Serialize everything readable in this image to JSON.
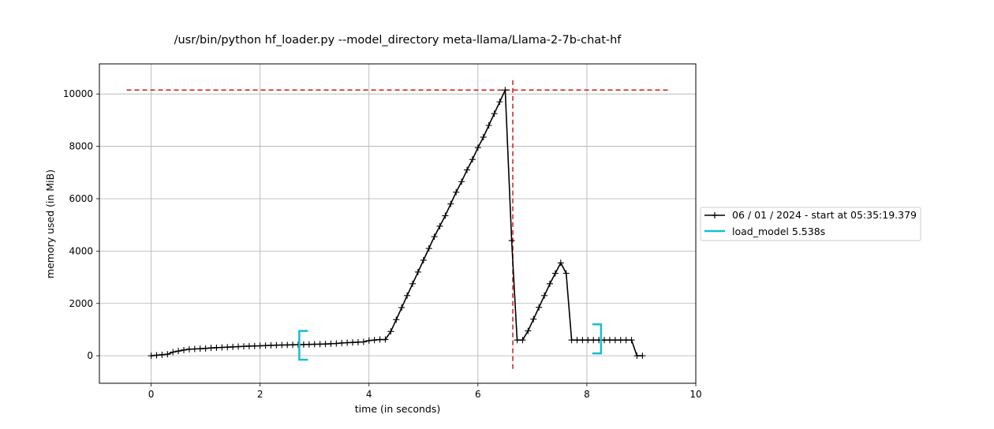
{
  "chart_data": {
    "type": "line",
    "title": "/usr/bin/python hf_loader.py --model_directory meta-llama/Llama-2-7b-chat-hf",
    "xlabel": "time (in seconds)",
    "ylabel": "memory used (in MiB)",
    "xlim": [
      -0.95,
      10
    ],
    "ylim": [
      -1050,
      11150
    ],
    "xticks": [
      "0",
      "2",
      "4",
      "6",
      "8",
      "10"
    ],
    "yticks": [
      "0",
      "2000",
      "4000",
      "6000",
      "8000",
      "10000"
    ],
    "grid": true,
    "legend_position": "outside-right",
    "series": [
      {
        "name": "06 / 01 / 2024 - start at 05:35:19.379",
        "color": "#000000",
        "marker": "plus",
        "x": [
          0.0,
          0.1,
          0.2,
          0.3,
          0.4,
          0.5,
          0.6,
          0.7,
          0.8,
          0.9,
          1.0,
          1.1,
          1.2,
          1.3,
          1.4,
          1.5,
          1.6,
          1.7,
          1.8,
          1.9,
          2.0,
          2.1,
          2.2,
          2.3,
          2.4,
          2.5,
          2.6,
          2.7,
          2.8,
          2.9,
          3.0,
          3.1,
          3.2,
          3.3,
          3.4,
          3.5,
          3.6,
          3.7,
          3.8,
          3.9,
          4.0,
          4.1,
          4.2,
          4.3,
          4.4,
          4.5,
          4.6,
          4.7,
          4.8,
          4.9,
          5.0,
          5.1,
          5.2,
          5.3,
          5.4,
          5.5,
          5.6,
          5.7,
          5.8,
          5.9,
          6.0,
          6.1,
          6.2,
          6.3,
          6.4,
          6.5,
          6.62,
          6.72,
          6.82,
          6.92,
          7.02,
          7.12,
          7.22,
          7.32,
          7.42,
          7.52,
          7.62,
          7.72,
          7.82,
          7.92,
          8.02,
          8.12,
          8.22,
          8.32,
          8.42,
          8.52,
          8.62,
          8.72,
          8.82,
          8.92,
          9.02
        ],
        "y": [
          0,
          20,
          40,
          60,
          140,
          180,
          220,
          250,
          260,
          270,
          280,
          300,
          310,
          320,
          330,
          340,
          350,
          360,
          370,
          375,
          380,
          390,
          400,
          405,
          410,
          415,
          420,
          425,
          430,
          435,
          440,
          445,
          450,
          460,
          470,
          490,
          500,
          510,
          520,
          530,
          580,
          600,
          620,
          620,
          930,
          1380,
          1840,
          2300,
          2750,
          3200,
          3650,
          4100,
          4550,
          4950,
          5350,
          5800,
          6250,
          6650,
          7100,
          7500,
          7950,
          8350,
          8800,
          9250,
          9700,
          10150,
          4400,
          600,
          600,
          950,
          1400,
          1850,
          2300,
          2750,
          3150,
          3550,
          3150,
          600,
          600,
          600,
          600,
          600,
          600,
          600,
          600,
          600,
          600,
          600,
          600,
          0,
          0
        ]
      },
      {
        "name": "load_model 5.538s",
        "color": "#17becf",
        "brackets": [
          {
            "x": 2.72,
            "y_low": -150,
            "y_high": 950,
            "side": "left"
          },
          {
            "x": 8.26,
            "y_low": 90,
            "y_high": 1200,
            "side": "right"
          }
        ]
      }
    ],
    "annotations": [
      {
        "type": "hline",
        "y": 10150,
        "x_from": -0.45,
        "x_to": 9.5,
        "color": "#d62728",
        "style": "dashed"
      },
      {
        "type": "vline",
        "x": 6.64,
        "y_from": -500,
        "y_to": 10650,
        "color": "#d62728",
        "style": "dashed"
      }
    ]
  }
}
